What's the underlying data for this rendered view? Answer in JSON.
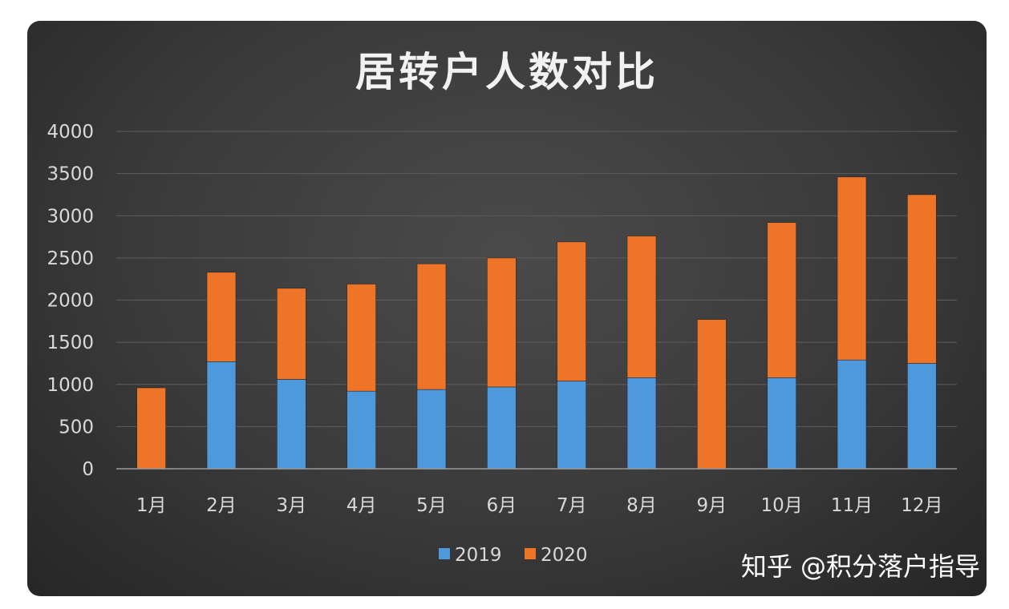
{
  "chart_data": {
    "type": "bar",
    "stacked": true,
    "title": "居转户人数对比",
    "categories": [
      "1月",
      "2月",
      "3月",
      "4月",
      "5月",
      "6月",
      "7月",
      "8月",
      "9月",
      "10月",
      "11月",
      "12月"
    ],
    "series": [
      {
        "name": "2019",
        "color": "#4e98dc",
        "values": [
          0,
          1270,
          1060,
          920,
          940,
          970,
          1040,
          1080,
          0,
          1080,
          1290,
          1250
        ]
      },
      {
        "name": "2020",
        "color": "#ee7427",
        "values": [
          960,
          1060,
          1080,
          1270,
          1490,
          1530,
          1650,
          1680,
          1770,
          1840,
          2170,
          2000
        ]
      }
    ],
    "ylim": [
      0,
      4000
    ],
    "yticks": [
      0,
      500,
      1000,
      1500,
      2000,
      2500,
      3000,
      3500,
      4000
    ],
    "grid": true,
    "legend_position": "bottom"
  },
  "watermark": "知乎 @积分落户指导"
}
